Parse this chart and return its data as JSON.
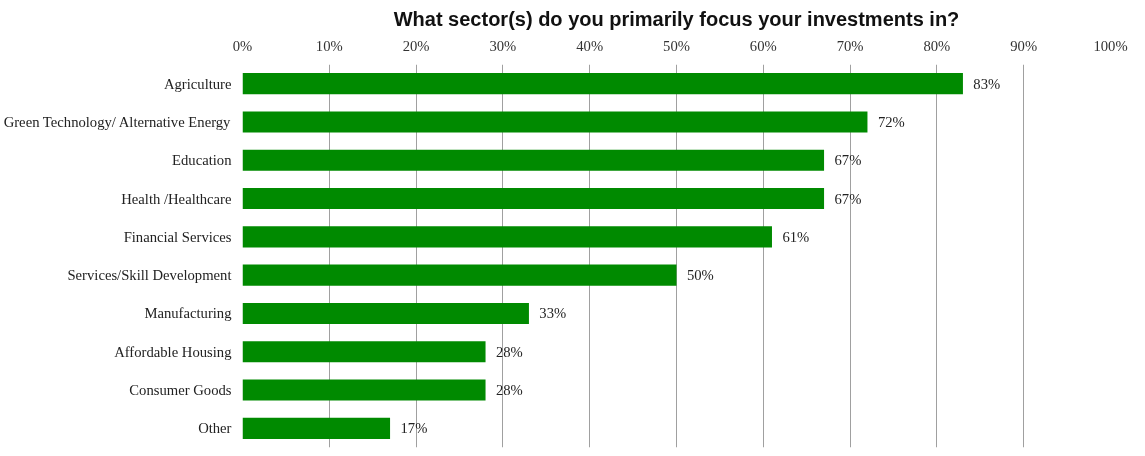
{
  "chart_data": {
    "type": "bar",
    "orientation": "horizontal",
    "title": "What sector(s) do you primarily focus your investments in?",
    "categories": [
      "Agriculture",
      "Green Technology/ Alternative Energy",
      "Education",
      "Health /Healthcare",
      "Financial Services",
      "Services/Skill Development",
      "Manufacturing",
      "Affordable Housing",
      "Consumer Goods",
      "Other"
    ],
    "values": [
      83,
      72,
      67,
      67,
      61,
      50,
      33,
      28,
      28,
      17
    ],
    "value_labels": [
      "83%",
      "72%",
      "67%",
      "67%",
      "61%",
      "50%",
      "33%",
      "28%",
      "28%",
      "17%"
    ],
    "color": "#008a00",
    "xlim": [
      0,
      100
    ],
    "xticks": [
      {
        "value": 0,
        "label": "0%"
      },
      {
        "value": 10,
        "label": "10%"
      },
      {
        "value": 20,
        "label": "20%"
      },
      {
        "value": 30,
        "label": "30%"
      },
      {
        "value": 40,
        "label": "40%"
      },
      {
        "value": 50,
        "label": "50%"
      },
      {
        "value": 60,
        "label": "60%"
      },
      {
        "value": 70,
        "label": "70%"
      },
      {
        "value": 80,
        "label": "80%"
      },
      {
        "value": 90,
        "label": "90%"
      },
      {
        "value": 100,
        "label": "100%"
      }
    ],
    "grid": "x"
  }
}
